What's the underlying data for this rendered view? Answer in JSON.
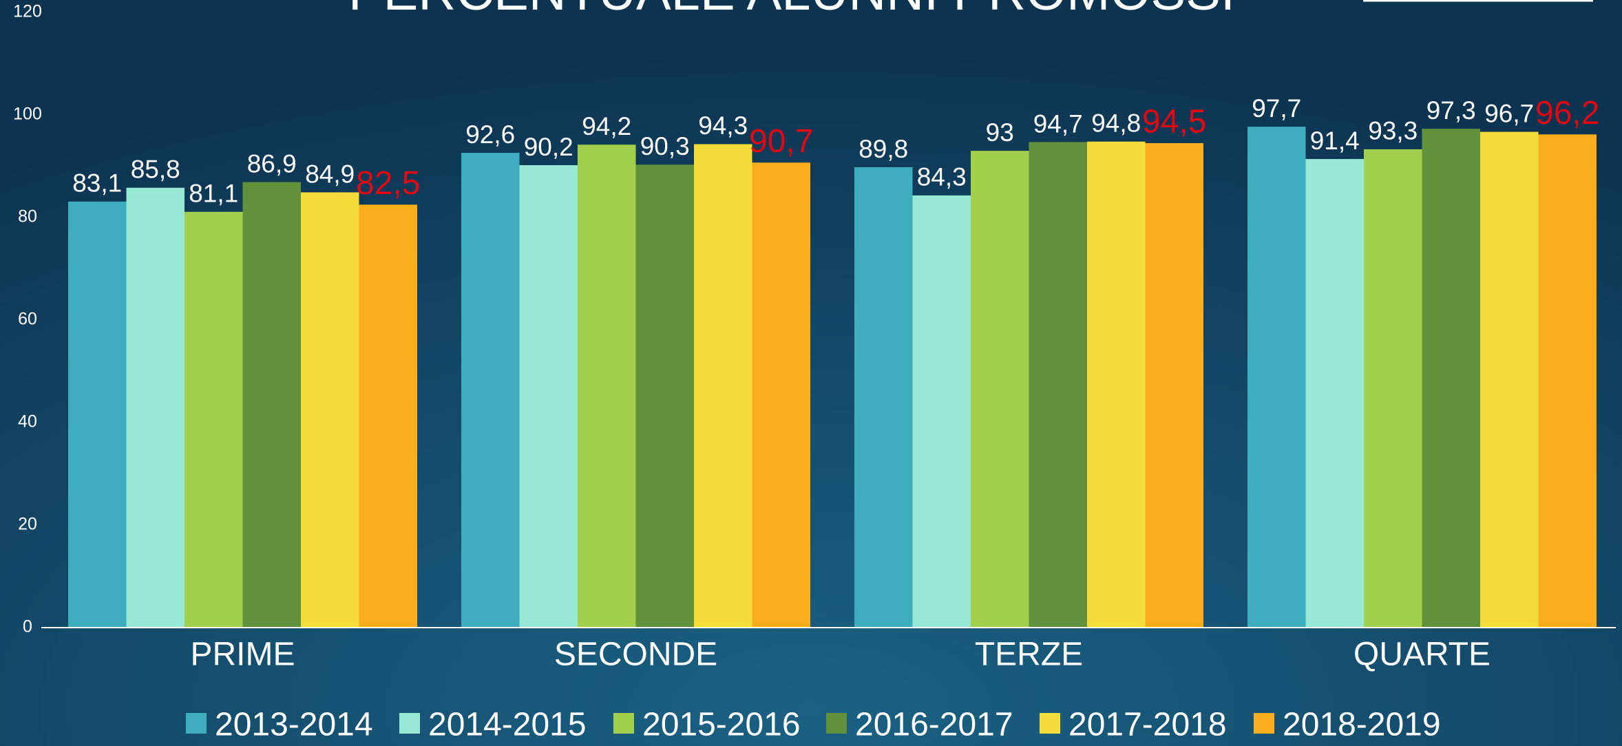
{
  "chart_data": {
    "type": "bar",
    "title": "PERCENTUALE ALUNNI PROMOSSI",
    "categories": [
      "PRIME",
      "SECONDE",
      "TERZE",
      "QUARTE"
    ],
    "series": [
      {
        "name": "2013-2014",
        "color": "#3eadbd",
        "label_color": "#ffffff",
        "values": [
          83.1,
          92.6,
          89.8,
          97.7
        ],
        "value_labels": [
          "83,1",
          "92,6",
          "89,8",
          "97,7"
        ]
      },
      {
        "name": "2014-2015",
        "color": "#98e8d6",
        "label_color": "#ffffff",
        "values": [
          85.8,
          90.2,
          84.3,
          91.4
        ],
        "value_labels": [
          "85,8",
          "90,2",
          "84,3",
          "91,4"
        ]
      },
      {
        "name": "2015-2016",
        "color": "#a2cf4c",
        "label_color": "#ffffff",
        "values": [
          81.1,
          94.2,
          93,
          93.3
        ],
        "value_labels": [
          "81,1",
          "94,2",
          "93",
          "93,3"
        ]
      },
      {
        "name": "2016-2017",
        "color": "#61913b",
        "label_color": "#ffffff",
        "values": [
          86.9,
          90.3,
          94.7,
          97.3
        ],
        "value_labels": [
          "86,9",
          "90,3",
          "94,7",
          "97,3"
        ]
      },
      {
        "name": "2017-2018",
        "color": "#f4dd38",
        "label_color": "#ffffff",
        "values": [
          84.9,
          94.3,
          94.8,
          96.7
        ],
        "value_labels": [
          "84,9",
          "94,3",
          "94,8",
          "96,7"
        ]
      },
      {
        "name": "2018-2019",
        "color": "#fbad1c",
        "label_color": "#e30613",
        "values": [
          82.5,
          90.7,
          94.5,
          96.2
        ],
        "value_labels": [
          "82,5",
          "90,7",
          "94,5",
          "96,2"
        ]
      }
    ],
    "ylim": [
      0,
      120
    ],
    "yticks": [
      0,
      20,
      40,
      60,
      80,
      100,
      120
    ],
    "grid": false,
    "legend": "bottom"
  }
}
